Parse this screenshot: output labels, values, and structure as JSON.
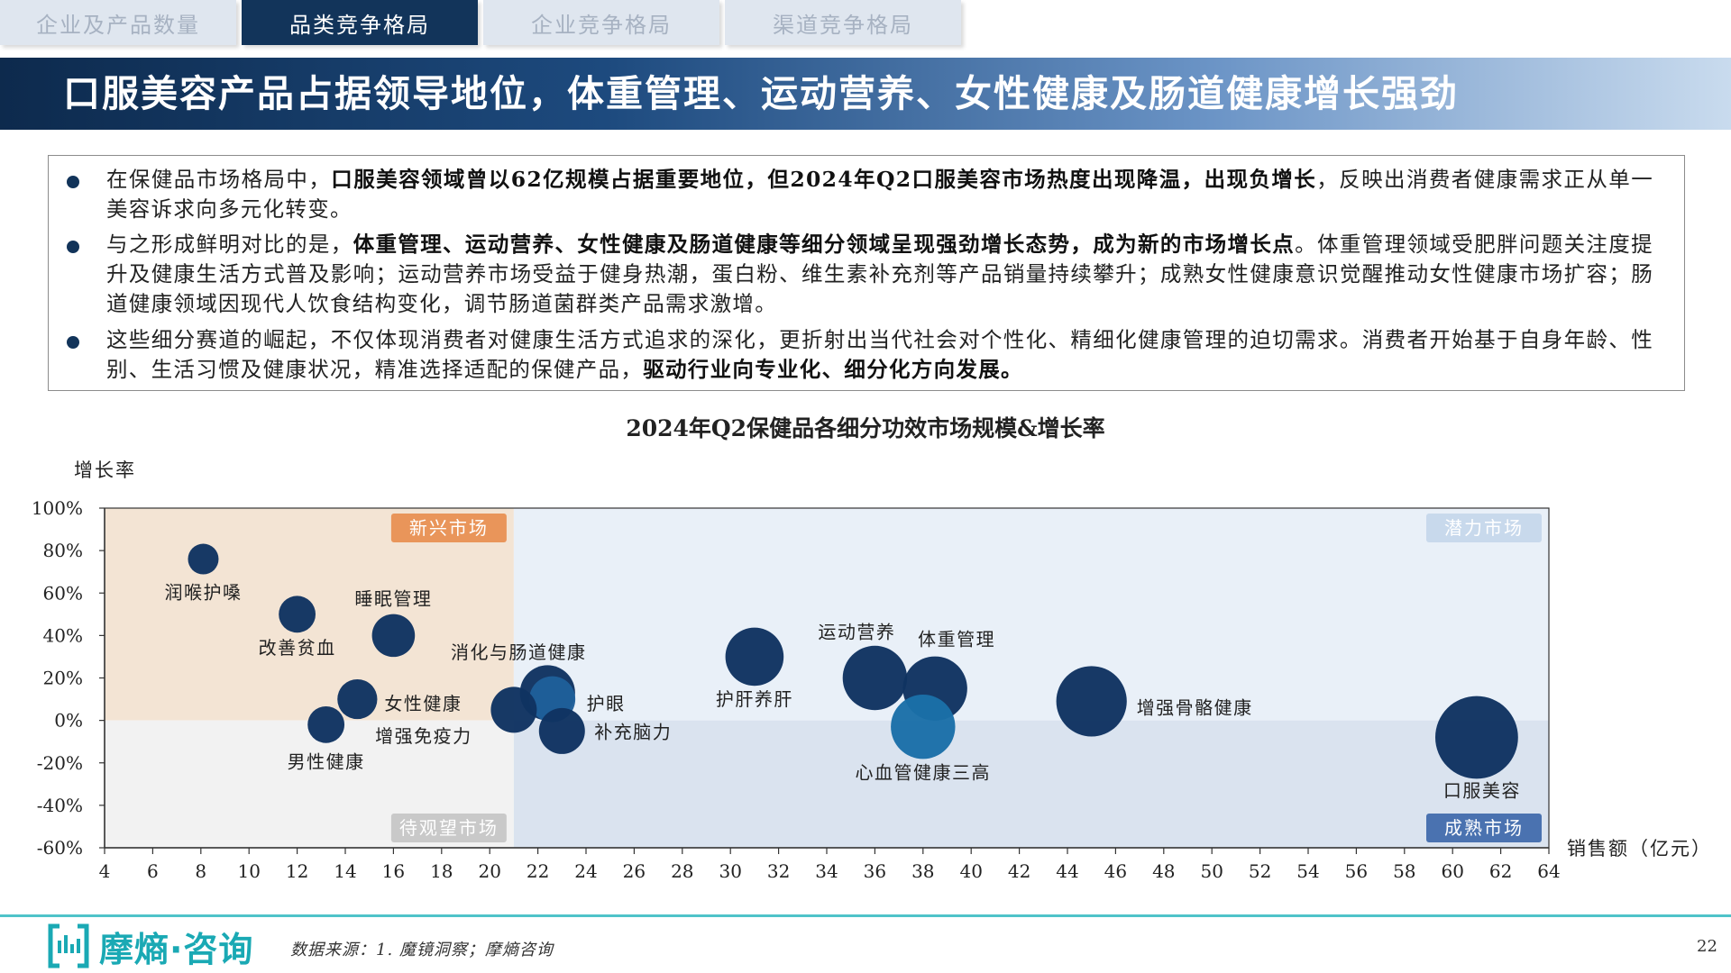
{
  "tabs": [
    {
      "label": "企业及产品数量",
      "active": false
    },
    {
      "label": "品类竞争格局",
      "active": true
    },
    {
      "label": "企业竞争格局",
      "active": false
    },
    {
      "label": "渠道竞争格局",
      "active": false
    }
  ],
  "header": {
    "title": "口服美容产品占据领导地位，体重管理、运动营养、女性健康及肠道健康增长强劲"
  },
  "summary": {
    "bullets": [
      [
        {
          "t": "在保健品市场格局中，",
          "b": false
        },
        {
          "t": "口服美容领域曾以62亿规模占据重要地位，但2024年Q2口服美容市场热度出现降温，出现负增长",
          "b": true
        },
        {
          "t": "，反映出消费者健康需求正从单一美容诉求向多元化转变。",
          "b": false
        }
      ],
      [
        {
          "t": "与之形成鲜明对比的是，",
          "b": false
        },
        {
          "t": "体重管理、运动营养、女性健康及肠道健康等细分领域呈现强劲增长态势，成为新的市场增长点",
          "b": true
        },
        {
          "t": "。体重管理领域受肥胖问题关注度提升及健康生活方式普及影响；运动营养市场受益于健身热潮，蛋白粉、维生素补充剂等产品销量持续攀升；成熟女性健康意识觉醒推动女性健康市场扩容；肠道健康领域因现代人饮食结构变化，调节肠道菌群类产品需求激增。",
          "b": false
        }
      ],
      [
        {
          "t": "这些细分赛道的崛起，不仅体现消费者对健康生活方式追求的深化，更折射出当代社会对个性化、精细化健康管理的迫切需求。消费者开始基于自身年龄、性别、生活习惯及健康状况，精准选择适配的保健产品，",
          "b": false
        },
        {
          "t": "驱动行业向专业化、细分化方向发展。",
          "b": true
        }
      ]
    ]
  },
  "chart_data": {
    "type": "scatter",
    "title": "2024年Q2保健品各细分功效市场规模&增长率",
    "ylabel": "增长率",
    "xlabel": "销售额（亿元）",
    "xlim": [
      4,
      64
    ],
    "ylim": [
      -60,
      100
    ],
    "xticks": [
      4,
      6,
      8,
      10,
      12,
      14,
      16,
      18,
      20,
      22,
      24,
      26,
      28,
      30,
      32,
      34,
      36,
      38,
      40,
      42,
      44,
      46,
      48,
      50,
      52,
      54,
      56,
      58,
      60,
      62,
      64
    ],
    "yticks": [
      100,
      80,
      60,
      40,
      20,
      0,
      -20,
      -40,
      -60
    ],
    "ytick_labels": [
      "100%",
      "80%",
      "60%",
      "40%",
      "20%",
      "0%",
      "-20%",
      "-40%",
      "-60%"
    ],
    "quadrant_split": {
      "x": 21,
      "y": 0
    },
    "quadrants": [
      {
        "label": "新兴市场",
        "position": "top-left",
        "color": "#f3e4d4",
        "label_bg": "#e9955a"
      },
      {
        "label": "潜力市场",
        "position": "top-right",
        "color": "#e9f0f8",
        "label_bg": "#c8d9ec"
      },
      {
        "label": "待观望市场",
        "position": "bottom-left",
        "color": "#f2f2f2",
        "label_bg": "#c9c9c9"
      },
      {
        "label": "成熟市场",
        "position": "bottom-right",
        "color": "#dae3ef",
        "label_bg": "#4a72b0"
      }
    ],
    "points": [
      {
        "name": "润喉护嗓",
        "x": 8.1,
        "y": 76,
        "size": 1.0,
        "color": "#0f3361"
      },
      {
        "name": "改善贫血",
        "x": 12.0,
        "y": 50,
        "size": 1.2,
        "color": "#0f3361"
      },
      {
        "name": "睡眠管理",
        "x": 16.0,
        "y": 40,
        "size": 1.4,
        "color": "#0f3361"
      },
      {
        "name": "女性健康",
        "x": 14.5,
        "y": 10,
        "size": 1.3,
        "color": "#0f3361"
      },
      {
        "name": "男性健康",
        "x": 13.2,
        "y": -2,
        "size": 1.2,
        "color": "#0f3361"
      },
      {
        "name": "消化与肠道健康",
        "x": 22.4,
        "y": 13,
        "size": 1.8,
        "color": "#0f3361"
      },
      {
        "name": "护眼",
        "x": 22.6,
        "y": 10,
        "size": 1.5,
        "color": "#1f5f9a"
      },
      {
        "name": "增强免疫力",
        "x": 21.0,
        "y": 5,
        "size": 1.5,
        "color": "#0f3361"
      },
      {
        "name": "补充脑力",
        "x": 23.0,
        "y": -5,
        "size": 1.5,
        "color": "#0f3361"
      },
      {
        "name": "护肝养肝",
        "x": 31.0,
        "y": 30,
        "size": 1.9,
        "color": "#0f3361"
      },
      {
        "name": "运动营养",
        "x": 36.0,
        "y": 20,
        "size": 2.1,
        "color": "#0f3361"
      },
      {
        "name": "体重管理",
        "x": 38.5,
        "y": 15,
        "size": 2.1,
        "color": "#0f3361"
      },
      {
        "name": "心血管健康三高",
        "x": 38.0,
        "y": -3,
        "size": 2.1,
        "color": "#1b6fa8"
      },
      {
        "name": "增强骨骼健康",
        "x": 45.0,
        "y": 9,
        "size": 2.3,
        "color": "#0f3361"
      },
      {
        "name": "口服美容",
        "x": 61.0,
        "y": -8,
        "size": 2.7,
        "color": "#0f3361"
      }
    ]
  },
  "footer": {
    "logo": "摩熵·咨询",
    "logo_icon": "bracket-bars-icon",
    "source": "数据来源：1. 魔镜洞察；摩熵咨询",
    "page_number": "22"
  }
}
